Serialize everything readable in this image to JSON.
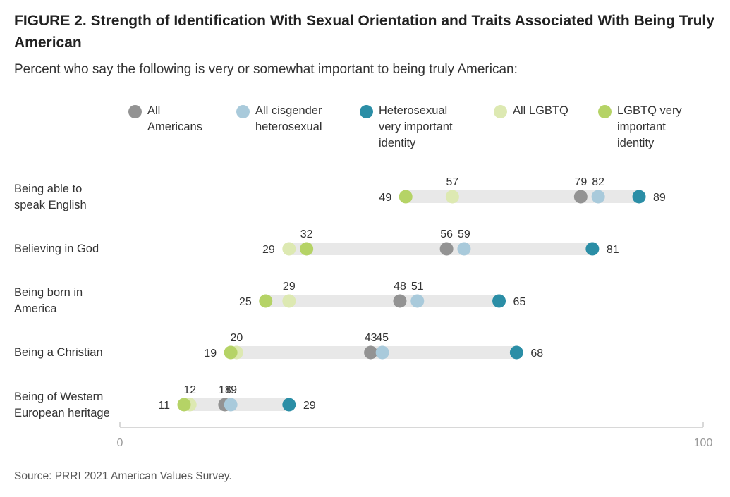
{
  "title": "FIGURE 2.  Strength of Identification With Sexual Orientation and Traits Associated With Being Truly American",
  "subtitle": "Percent who say the following is very or somewhat important to being truly American:",
  "source": "Source: PRRI 2021 American Values Survey.",
  "colors": {
    "all_americans": "#939393",
    "cis_het": "#a9cadb",
    "het_very": "#2b8ea6",
    "all_lgbtq": "#dde9b2",
    "lgbtq_very": "#b5d366",
    "bar": "#e8e8e8",
    "axis": "#cccccc"
  },
  "legend": [
    {
      "label": "All\nAmericans",
      "color_key": "all_americans"
    },
    {
      "label": "All cisgender\nheterosexual",
      "color_key": "cis_het"
    },
    {
      "label": "Heterosexual\nvery important\nidentity",
      "color_key": "het_very"
    },
    {
      "label": "All LGBTQ",
      "color_key": "all_lgbtq"
    },
    {
      "label": "LGBTQ very\nimportant\nidentity",
      "color_key": "lgbtq_very"
    }
  ],
  "row_labels": [
    "Being able to\nspeak English",
    "Believing in God",
    "Being born in\nAmerica",
    "Being a Christian",
    "Being of Western\nEuropean heritage"
  ],
  "chart_data": {
    "type": "dot-range",
    "categories": [
      "Being able to speak English",
      "Believing in God",
      "Being born in America",
      "Being a Christian",
      "Being of Western European heritage"
    ],
    "xlim": [
      0,
      100
    ],
    "x_ticks": [
      "0",
      "100"
    ],
    "series": [
      {
        "name": "All Americans",
        "key": "all_americans",
        "values": [
          79,
          56,
          48,
          43,
          18
        ]
      },
      {
        "name": "All cisgender heterosexual",
        "key": "cis_het",
        "values": [
          82,
          59,
          51,
          45,
          19
        ]
      },
      {
        "name": "Heterosexual very important identity",
        "key": "het_very",
        "values": [
          89,
          81,
          65,
          68,
          29
        ]
      },
      {
        "name": "All LGBTQ",
        "key": "all_lgbtq",
        "values": [
          57,
          29,
          29,
          20,
          12
        ]
      },
      {
        "name": "LGBTQ very important identity",
        "key": "lgbtq_very",
        "values": [
          49,
          32,
          25,
          19,
          11
        ]
      }
    ]
  }
}
